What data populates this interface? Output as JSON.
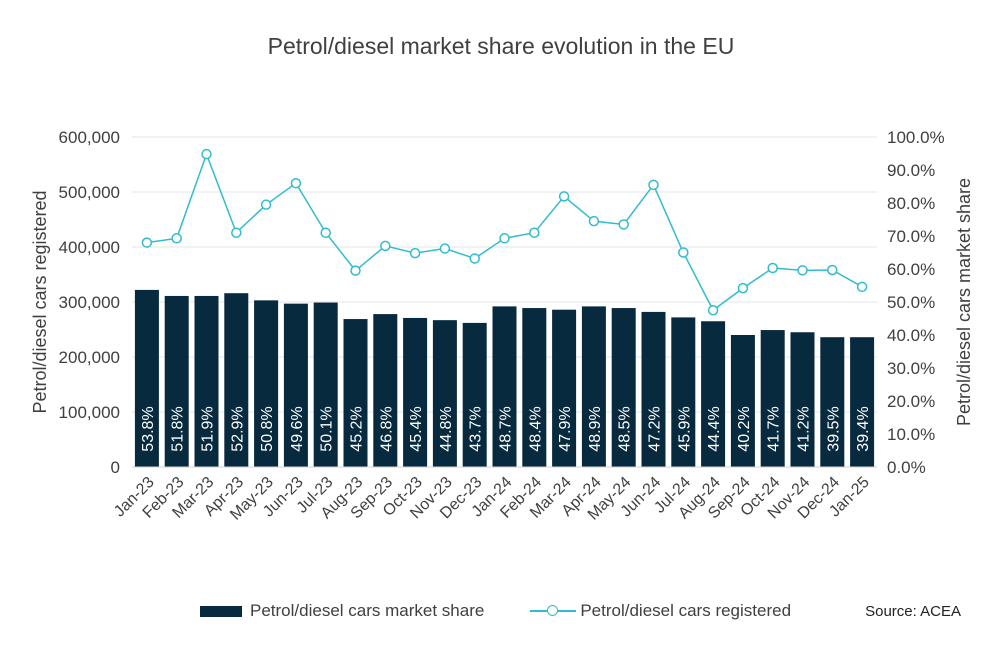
{
  "title": "Petrol/diesel market share evolution in the EU",
  "source": "Source: ACEA",
  "colors": {
    "bar": "#082a3f",
    "line": "#31bccd",
    "text": "#404040",
    "grid": "#e6e6e6"
  },
  "chart_data": {
    "type": "bar+line",
    "categories": [
      "Jan-23",
      "Feb-23",
      "Mar-23",
      "Apr-23",
      "May-23",
      "Jun-23",
      "Jul-23",
      "Aug-23",
      "Sep-23",
      "Oct-23",
      "Nov-23",
      "Dec-23",
      "Jan-24",
      "Feb-24",
      "Mar-24",
      "Apr-24",
      "May-24",
      "Jun-24",
      "Jul-24",
      "Aug-24",
      "Sep-24",
      "Oct-24",
      "Nov-24",
      "Dec-24",
      "Jan-25"
    ],
    "series": [
      {
        "name": "Petrol/diesel cars market share",
        "kind": "bar",
        "axis": "left",
        "values": [
          322000,
          311000,
          311000,
          316000,
          303000,
          297000,
          299000,
          269000,
          278000,
          271000,
          267000,
          262000,
          292000,
          289000,
          286000,
          292000,
          289000,
          282000,
          272000,
          265000,
          240000,
          249000,
          245000,
          236000,
          236000
        ],
        "labels": [
          "53.8%",
          "51.8%",
          "51.9%",
          "52.9%",
          "50.8%",
          "49.6%",
          "50.1%",
          "45.2%",
          "46.8%",
          "45.4%",
          "44.8%",
          "43.7%",
          "48.7%",
          "48.4%",
          "47.9%",
          "48.9%",
          "48.5%",
          "47.2%",
          "45.9%",
          "44.4%",
          "40.2%",
          "41.7%",
          "41.2%",
          "39.5%",
          "39.4%"
        ]
      },
      {
        "name": "Petrol/diesel cars registered",
        "kind": "line",
        "axis": "right",
        "values": [
          68.0,
          69.3,
          94.8,
          71.0,
          79.5,
          86.0,
          71.0,
          59.5,
          67.0,
          64.8,
          66.2,
          63.2,
          69.3,
          71.0,
          82.0,
          74.5,
          73.5,
          85.5,
          65.0,
          47.5,
          54.2,
          60.3,
          59.6,
          59.7,
          54.6
        ]
      }
    ],
    "y_left": {
      "label": "Petrol/diesel cars registered",
      "min": 0,
      "max": 600000,
      "ticks": [
        "0",
        "100,000",
        "200,000",
        "300,000",
        "400,000",
        "500,000",
        "600,000"
      ]
    },
    "y_right": {
      "label": "Petrol/diesel cars market share",
      "min": 0,
      "max": 100,
      "ticks": [
        "0.0%",
        "10.0%",
        "20.0%",
        "30.0%",
        "40.0%",
        "50.0%",
        "60.0%",
        "70.0%",
        "80.0%",
        "90.0%",
        "100.0%"
      ]
    },
    "grid": true,
    "legend": "bottom"
  }
}
